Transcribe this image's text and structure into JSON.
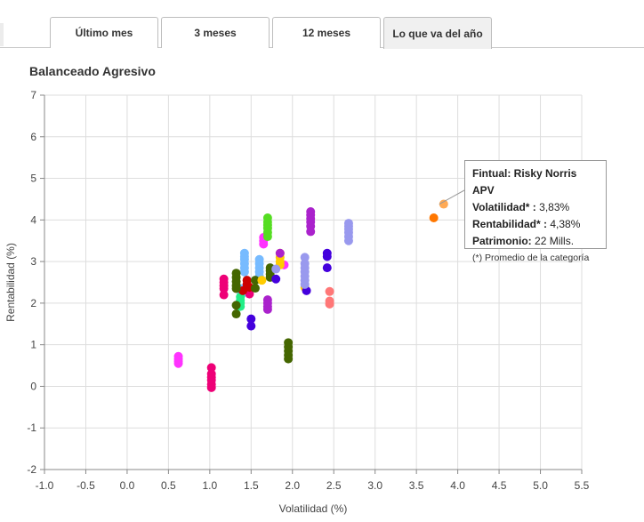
{
  "tabs": [
    {
      "label": "Último mes",
      "active": false
    },
    {
      "label": "3 meses",
      "active": false
    },
    {
      "label": "12 meses",
      "active": false
    },
    {
      "label": "Lo que va del año",
      "active": true
    }
  ],
  "chart_data": {
    "type": "scatter",
    "title": "Balanceado Agresivo",
    "xlabel": "Volatilidad (%)",
    "ylabel": "Rentabilidad (%)",
    "xlim": [
      -1.0,
      5.5
    ],
    "ylim": [
      -2,
      7
    ],
    "xticks": [
      "-1.0",
      "-0.5",
      "0.0",
      "0.5",
      "1.0",
      "1.5",
      "2.0",
      "2.5",
      "3.0",
      "3.5",
      "4.0",
      "4.5",
      "5.0",
      "5.5"
    ],
    "yticks": [
      "-2",
      "-1",
      "0",
      "1",
      "2",
      "3",
      "4",
      "5",
      "6",
      "7"
    ],
    "grid": true,
    "series": [
      {
        "color": "#ff33ff",
        "points": [
          [
            0.62,
            0.72
          ],
          [
            0.62,
            0.66
          ],
          [
            0.62,
            0.6
          ],
          [
            0.62,
            0.55
          ],
          [
            1.65,
            3.58
          ],
          [
            1.65,
            3.5
          ],
          [
            1.65,
            3.42
          ],
          [
            1.9,
            2.92
          ]
        ]
      },
      {
        "color": "#ee0077",
        "points": [
          [
            1.02,
            0.45
          ],
          [
            1.02,
            0.3
          ],
          [
            1.02,
            0.22
          ],
          [
            1.02,
            0.15
          ],
          [
            1.02,
            0.05
          ],
          [
            1.02,
            -0.03
          ],
          [
            1.17,
            2.58
          ],
          [
            1.17,
            2.5
          ],
          [
            1.17,
            2.42
          ],
          [
            1.17,
            2.35
          ],
          [
            1.17,
            2.2
          ],
          [
            1.48,
            2.22
          ],
          [
            1.48,
            2.3
          ]
        ]
      },
      {
        "color": "#55dd22",
        "points": [
          [
            1.7,
            4.05
          ],
          [
            1.7,
            3.95
          ],
          [
            1.7,
            3.88
          ],
          [
            1.7,
            3.8
          ],
          [
            1.7,
            3.7
          ],
          [
            1.7,
            3.6
          ]
        ]
      },
      {
        "color": "#77bbff",
        "points": [
          [
            1.42,
            3.2
          ],
          [
            1.42,
            3.12
          ],
          [
            1.42,
            3.05
          ],
          [
            1.42,
            2.95
          ],
          [
            1.42,
            2.85
          ],
          [
            1.42,
            2.75
          ],
          [
            1.6,
            3.05
          ],
          [
            1.6,
            2.95
          ],
          [
            1.6,
            2.85
          ],
          [
            1.6,
            2.75
          ],
          [
            1.6,
            2.65
          ],
          [
            1.38,
            2.35
          ],
          [
            1.38,
            2.28
          ],
          [
            1.38,
            2.2
          ]
        ]
      },
      {
        "color": "#22ee88",
        "points": [
          [
            1.37,
            2.15
          ],
          [
            1.37,
            2.07
          ],
          [
            1.37,
            2.0
          ],
          [
            1.37,
            1.92
          ]
        ]
      },
      {
        "color": "#cc0000",
        "points": [
          [
            1.45,
            2.55
          ],
          [
            1.45,
            2.45
          ],
          [
            1.48,
            2.38
          ],
          [
            1.4,
            2.3
          ]
        ]
      },
      {
        "color": "#446600",
        "points": [
          [
            1.32,
            2.72
          ],
          [
            1.32,
            2.62
          ],
          [
            1.32,
            2.52
          ],
          [
            1.32,
            2.42
          ],
          [
            1.32,
            2.35
          ],
          [
            1.32,
            1.95
          ],
          [
            1.32,
            1.74
          ],
          [
            1.55,
            2.55
          ],
          [
            1.55,
            2.36
          ],
          [
            1.73,
            2.85
          ],
          [
            1.73,
            2.78
          ],
          [
            1.73,
            2.7
          ],
          [
            1.73,
            2.62
          ],
          [
            1.95,
            1.05
          ],
          [
            1.95,
            0.95
          ],
          [
            1.95,
            0.85
          ],
          [
            1.95,
            0.75
          ],
          [
            1.95,
            0.66
          ]
        ]
      },
      {
        "color": "#ffcc00",
        "points": [
          [
            1.85,
            3.2
          ],
          [
            1.85,
            3.1
          ],
          [
            1.85,
            3.0
          ],
          [
            1.85,
            2.92
          ],
          [
            1.63,
            2.55
          ],
          [
            2.15,
            2.38
          ]
        ]
      },
      {
        "color": "#aa22cc",
        "points": [
          [
            1.7,
            2.08
          ],
          [
            1.7,
            2.0
          ],
          [
            1.7,
            1.92
          ],
          [
            1.7,
            1.85
          ],
          [
            2.22,
            4.2
          ],
          [
            2.22,
            4.12
          ],
          [
            2.22,
            4.03
          ],
          [
            2.22,
            3.95
          ],
          [
            2.22,
            3.85
          ],
          [
            2.22,
            3.72
          ],
          [
            1.85,
            3.2
          ]
        ]
      },
      {
        "color": "#4400dd",
        "points": [
          [
            1.5,
            1.62
          ],
          [
            1.5,
            1.45
          ],
          [
            1.8,
            2.58
          ],
          [
            2.17,
            2.3
          ],
          [
            2.42,
            3.2
          ],
          [
            2.42,
            3.12
          ],
          [
            2.42,
            2.85
          ]
        ]
      },
      {
        "color": "#9999ee",
        "points": [
          [
            2.15,
            3.1
          ],
          [
            2.15,
            2.95
          ],
          [
            2.15,
            2.85
          ],
          [
            2.15,
            2.75
          ],
          [
            2.15,
            2.65
          ],
          [
            2.15,
            2.55
          ],
          [
            2.15,
            2.45
          ],
          [
            2.68,
            3.92
          ],
          [
            2.68,
            3.85
          ],
          [
            2.68,
            3.78
          ],
          [
            2.68,
            3.7
          ],
          [
            2.68,
            3.6
          ],
          [
            2.68,
            3.5
          ],
          [
            1.8,
            2.82
          ]
        ]
      },
      {
        "color": "#ff7777",
        "points": [
          [
            2.45,
            2.28
          ],
          [
            2.45,
            2.05
          ],
          [
            2.45,
            1.98
          ]
        ]
      },
      {
        "color": "#ff7700",
        "points": [
          [
            3.71,
            4.05
          ]
        ]
      },
      {
        "color": "#ffaa55",
        "points": [
          [
            3.83,
            4.38
          ]
        ]
      }
    ],
    "tooltip": {
      "name": "Fintual: Risky Norris APV",
      "vol_label": "Volatilidad* :",
      "vol_value": "3,83%",
      "rent_label": "Rentabilidad* :",
      "rent_value": "4,38%",
      "pat_label": "Patrimonio:",
      "pat_value": "22 Mills.",
      "note": "(*) Promedio de la categoría"
    }
  }
}
